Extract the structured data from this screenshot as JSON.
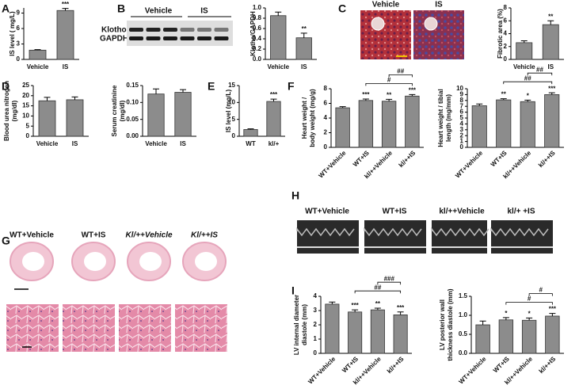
{
  "panels": [
    "A",
    "B",
    "C",
    "D",
    "E",
    "F",
    "G",
    "H",
    "I"
  ],
  "blot": {
    "groups": [
      "Vehicle",
      "IS"
    ],
    "proteins": [
      "Klotho",
      "GAPDH"
    ]
  },
  "trichrome": [
    "Vehicle",
    "IS"
  ],
  "histology": [
    "WT+Vehicle",
    "WT+IS",
    "Kl/++Vehicle",
    "Kl/++IS"
  ],
  "echo": [
    "WT+Vehicle",
    "WT+IS",
    "kl/++Vehicle",
    "kl/+ +IS"
  ],
  "chart_data": [
    {
      "type": "bar",
      "y_label": [
        "IS  level ( mg/L)"
      ],
      "categories": [
        "Vehicle",
        "IS"
      ],
      "values": [
        1.8,
        9.5
      ],
      "errors": [
        0.1,
        0.4
      ],
      "significance": [
        null,
        "***"
      ],
      "color": "#8c8c8c",
      "ylim": [
        0,
        10
      ],
      "yticks": [
        0,
        3,
        6,
        9
      ]
    },
    {
      "type": "bar",
      "y_label": [
        "Klotho/GAPDH"
      ],
      "categories": [
        "Vehicle",
        "IS"
      ],
      "values": [
        0.85,
        0.42
      ],
      "errors": [
        0.07,
        0.09
      ],
      "significance": [
        null,
        "**"
      ],
      "color": "#8c8c8c",
      "ylim": [
        0,
        1.0
      ],
      "yticks": [
        {
          "value": 0,
          "label": "0.0"
        },
        0.2,
        0.4,
        0.6,
        0.8,
        {
          "value": 1.0,
          "label": "1.0"
        }
      ]
    },
    {
      "type": "bar",
      "y_label": [
        "Fibrotic area (%)"
      ],
      "categories": [
        "Vehicle",
        "IS"
      ],
      "values": [
        2.6,
        5.4
      ],
      "errors": [
        0.3,
        0.6
      ],
      "significance": [
        null,
        "**"
      ],
      "color": "#8c8c8c",
      "ylim": [
        0,
        8
      ],
      "yticks": [
        0,
        2,
        4,
        6,
        8
      ]
    },
    {
      "type": "bar",
      "y_label": [
        "Blood urea nitrogen",
        "(mg/dl)"
      ],
      "categories": [
        "Vehicle",
        "IS"
      ],
      "values": [
        17.5,
        18
      ],
      "errors": [
        1.7,
        1.4
      ],
      "significance": [
        null,
        null
      ],
      "color": "#8c8c8c",
      "ylim": [
        0,
        25
      ],
      "yticks": [
        0,
        5,
        10,
        15,
        20,
        25
      ]
    },
    {
      "type": "bar",
      "y_label": [
        "Serum creatinine",
        "(mg/dl)"
      ],
      "categories": [
        "Vehicle",
        "IS"
      ],
      "values": [
        0.125,
        0.13
      ],
      "errors": [
        0.015,
        0.008
      ],
      "significance": [
        null,
        null
      ],
      "color": "#8c8c8c",
      "ylim": [
        0,
        0.15
      ],
      "yticks": [
        {
          "value": 0,
          "label": "0.00"
        },
        {
          "value": 0.05,
          "label": "0.05"
        },
        {
          "value": 0.1,
          "label": "0.10"
        },
        {
          "value": 0.15,
          "label": "0.15"
        }
      ]
    },
    {
      "type": "bar",
      "y_label": [
        "IS level (mg/L)"
      ],
      "categories": [
        "WT",
        "kl/+"
      ],
      "values": [
        2,
        10.3
      ],
      "errors": [
        0.2,
        0.7
      ],
      "significance": [
        null,
        "***"
      ],
      "color": "#8c8c8c",
      "ylim": [
        0,
        15
      ],
      "yticks": [
        0,
        5,
        10,
        15
      ]
    },
    {
      "type": "bar",
      "y_label": [
        "Heart weight /",
        "body weight (mg/g)"
      ],
      "categories": [
        "WT+Vehicle",
        "WT+IS",
        "kl/++Vehicle",
        "kl/++IS"
      ],
      "values": [
        5.4,
        6.4,
        6.3,
        7.0
      ],
      "errors": [
        0.15,
        0.2,
        0.25,
        0.2
      ],
      "significance": [
        null,
        "***",
        "**",
        "***"
      ],
      "brackets": [
        "#",
        "##"
      ],
      "color": "#8c8c8c",
      "ylim": [
        0,
        8
      ],
      "yticks": [
        0,
        2,
        4,
        6,
        8
      ]
    },
    {
      "type": "bar",
      "y_label": [
        "Heart weight / tibial",
        "length (mg/mm)"
      ],
      "categories": [
        "WT+Vehicle",
        "WT+IS",
        "kl/++Vehicle",
        "kl/++IS"
      ],
      "values": [
        7.1,
        8.1,
        7.8,
        9.0
      ],
      "errors": [
        0.3,
        0.2,
        0.25,
        0.3
      ],
      "significance": [
        null,
        "**",
        "*",
        "***"
      ],
      "brackets": [
        "##",
        "##"
      ],
      "color": "#8c8c8c",
      "ylim": [
        0,
        10
      ],
      "yticks": [
        0,
        1,
        2,
        3,
        4,
        5,
        6,
        7,
        8,
        9,
        10
      ]
    },
    {
      "type": "bar",
      "y_label": [
        "LV internal diameter",
        "diastole (mm)"
      ],
      "categories": [
        "WT+Vehicle",
        "WT+IS",
        "kl/++Vehicle",
        "kl/++IS"
      ],
      "values": [
        3.45,
        2.9,
        3.05,
        2.7
      ],
      "errors": [
        0.15,
        0.15,
        0.12,
        0.2
      ],
      "significance": [
        null,
        "***",
        "**",
        "***"
      ],
      "brackets": [
        "##",
        "###"
      ],
      "color": "#8c8c8c",
      "ylim": [
        0,
        4
      ],
      "yticks": [
        0,
        1,
        2,
        3,
        4
      ]
    },
    {
      "type": "bar",
      "y_label": [
        "LV posterior wall",
        "thickness diastole (mm)"
      ],
      "categories": [
        "WT+Vehicle",
        "WT+IS",
        "kl/++Vehicle",
        "kl/++IS"
      ],
      "values": [
        0.75,
        0.88,
        0.87,
        0.98
      ],
      "errors": [
        0.1,
        0.06,
        0.06,
        0.07
      ],
      "significance": [
        null,
        "*",
        "*",
        "***"
      ],
      "brackets": [
        "#",
        "#"
      ],
      "color": "#8c8c8c",
      "ylim": [
        0,
        1.5
      ],
      "yticks": [
        {
          "value": 0,
          "label": "0.0"
        },
        0.5,
        {
          "value": 1.0,
          "label": "1.0"
        },
        1.5
      ]
    }
  ]
}
